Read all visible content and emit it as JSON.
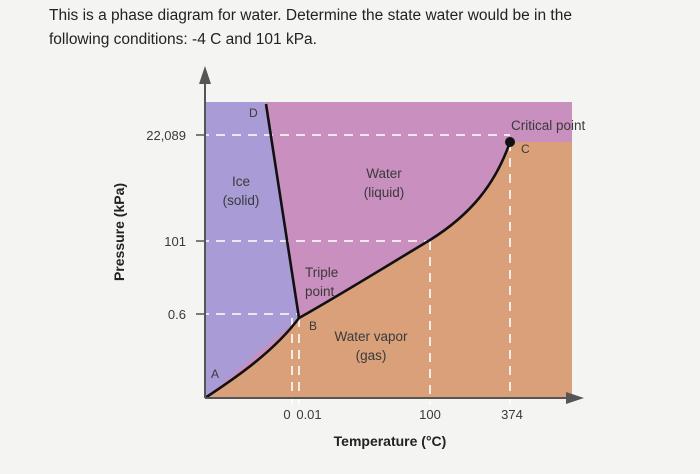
{
  "question": {
    "text": "This is a phase diagram for water. Determine the state water would be in the\nfollowing conditions: -4 C and 101 kPa."
  },
  "diagram": {
    "y_axis_title": "Pressure (kPa)",
    "x_axis_title": "Temperature (°C)",
    "y_ticks": [
      "22,089",
      "101",
      "0.6"
    ],
    "x_ticks": [
      "0",
      "0.01",
      "100",
      "374"
    ],
    "regions": {
      "solid": {
        "line1": "Ice",
        "line2": "(solid)",
        "color": "#a89bd6"
      },
      "liquid": {
        "line1": "Water",
        "line2": "(liquid)",
        "color": "#c98fbe"
      },
      "gas": {
        "line1": "Water vapor",
        "line2": "(gas)",
        "color": "#d9a07a"
      }
    },
    "points": {
      "A": "A",
      "B": "B",
      "C": "C",
      "D": "D",
      "triple_line1": "Triple",
      "triple_line2": "point",
      "critical": "Critical point"
    }
  }
}
